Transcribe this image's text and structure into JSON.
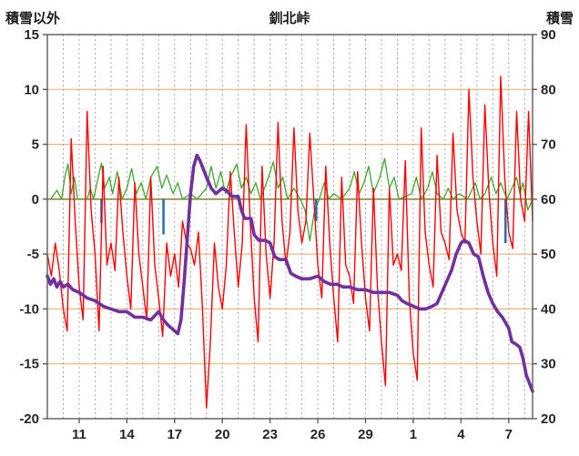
{
  "header": {
    "left_label": "積雪以外",
    "title": "釧北峠",
    "right_label": "積雪"
  },
  "style": {
    "grid_h_color": "#F2A25C",
    "zero_line_color": "#8A8A3A",
    "grid_v_color": "#A8A8A8",
    "frame_color": "#5A5A5A",
    "tick_label_color": "#262626"
  },
  "chart_data": {
    "type": "line",
    "title": "釧北峠",
    "left_axis": {
      "label": "積雪以外",
      "min": -20,
      "max": 15,
      "ticks": [
        15,
        10,
        5,
        0,
        -5,
        -10,
        -15,
        -20
      ]
    },
    "right_axis": {
      "label": "積雪",
      "min": 20,
      "max": 90,
      "ticks": [
        90,
        80,
        70,
        60,
        50,
        40,
        30,
        20
      ]
    },
    "x_axis": {
      "min": 9,
      "max": 39.5,
      "tick_positions": [
        11,
        14,
        17,
        20,
        23,
        26,
        29,
        32,
        35,
        38
      ],
      "tick_labels": [
        "11",
        "14",
        "17",
        "20",
        "23",
        "26",
        "29",
        "1",
        "4",
        "7"
      ],
      "day_grid_start": 10,
      "day_grid_end": 39
    },
    "series": [
      {
        "name": "green-line",
        "axis": "left",
        "style": "line",
        "color": "#3FA62C",
        "width": 1.3,
        "points": [
          [
            9.2,
            0
          ],
          [
            9.6,
            0.8
          ],
          [
            9.9,
            0
          ],
          [
            10.1,
            2
          ],
          [
            10.3,
            3.2
          ],
          [
            10.5,
            0.5
          ],
          [
            10.7,
            2
          ],
          [
            10.9,
            0
          ],
          [
            11.5,
            0
          ],
          [
            11.7,
            1
          ],
          [
            11.9,
            0
          ],
          [
            12.2,
            2
          ],
          [
            12.4,
            3.3
          ],
          [
            12.6,
            1
          ],
          [
            12.9,
            2
          ],
          [
            13.1,
            0.5
          ],
          [
            13.4,
            2.5
          ],
          [
            13.7,
            0
          ],
          [
            14,
            1
          ],
          [
            14.3,
            2.8
          ],
          [
            14.6,
            0.5
          ],
          [
            14.9,
            1.5
          ],
          [
            15.2,
            0
          ],
          [
            15.5,
            2
          ],
          [
            15.9,
            3
          ],
          [
            16.2,
            1
          ],
          [
            16.5,
            2.2
          ],
          [
            16.9,
            0.5
          ],
          [
            17.2,
            1.5
          ],
          [
            17.5,
            0
          ],
          [
            18,
            0.5
          ],
          [
            18.4,
            0
          ],
          [
            19,
            1
          ],
          [
            19.3,
            3
          ],
          [
            19.6,
            1
          ],
          [
            19.9,
            2.5
          ],
          [
            20.2,
            0.5
          ],
          [
            20.5,
            2
          ],
          [
            20.9,
            3.2
          ],
          [
            21.2,
            1
          ],
          [
            21.5,
            2
          ],
          [
            21.8,
            0.5
          ],
          [
            22.1,
            1.5
          ],
          [
            22.4,
            0
          ],
          [
            22.9,
            2
          ],
          [
            23.2,
            3.4
          ],
          [
            23.5,
            1
          ],
          [
            23.8,
            2
          ],
          [
            24.1,
            0
          ],
          [
            24.5,
            1
          ],
          [
            24.9,
            0
          ],
          [
            25.2,
            -1
          ],
          [
            25.5,
            -3.8
          ],
          [
            25.8,
            -1
          ],
          [
            26.1,
            0
          ],
          [
            26.4,
            1.5
          ],
          [
            26.7,
            0
          ],
          [
            27,
            0.5
          ],
          [
            27.5,
            0
          ],
          [
            28,
            1
          ],
          [
            28.3,
            2.5
          ],
          [
            28.6,
            0.5
          ],
          [
            28.9,
            1.5
          ],
          [
            29.2,
            3
          ],
          [
            29.5,
            0.5
          ],
          [
            29.9,
            2
          ],
          [
            30.2,
            3.7
          ],
          [
            30.5,
            1
          ],
          [
            30.8,
            2
          ],
          [
            31.1,
            0
          ],
          [
            31.9,
            0.5
          ],
          [
            32.2,
            2
          ],
          [
            32.5,
            0
          ],
          [
            32.9,
            1
          ],
          [
            33.2,
            2.5
          ],
          [
            33.5,
            0.5
          ],
          [
            33.9,
            0
          ],
          [
            34.2,
            1
          ],
          [
            34.5,
            0
          ],
          [
            34.9,
            0.5
          ],
          [
            35.4,
            0
          ],
          [
            35.9,
            1.5
          ],
          [
            36.2,
            0
          ],
          [
            36.5,
            0.5
          ],
          [
            36.9,
            2
          ],
          [
            37.2,
            0.5
          ],
          [
            37.5,
            1.5
          ],
          [
            37.9,
            0
          ],
          [
            38.2,
            1
          ],
          [
            38.5,
            2
          ],
          [
            38.7,
            0.5
          ],
          [
            38.9,
            1.5
          ],
          [
            39.2,
            -1
          ],
          [
            39.5,
            0
          ]
        ]
      },
      {
        "name": "blue-bars",
        "axis": "left",
        "style": "bars",
        "color": "#1F6EC0",
        "width": 2.5,
        "points": [
          [
            12.4,
            -2.2
          ],
          [
            16.3,
            -3.2
          ],
          [
            25.9,
            -2.0
          ],
          [
            37.8,
            -4.0
          ]
        ]
      },
      {
        "name": "red-line",
        "axis": "left",
        "style": "line",
        "color": "#FF0000",
        "width": 1.4,
        "x_start": 9,
        "x_step": 0.25,
        "values": [
          -5,
          -7,
          -4,
          -6.5,
          -10,
          -12,
          5.5,
          -2,
          -8,
          -11,
          8,
          -1,
          -5,
          -12,
          3,
          -6,
          -4,
          -6.5,
          2,
          -3,
          -7,
          -10,
          1.5,
          -5,
          -8,
          -11,
          2,
          -6,
          -9,
          -12.5,
          -4,
          -7,
          -5,
          -8,
          -2,
          -4,
          -4.5,
          -6,
          -3,
          -10,
          -19,
          -13,
          -4,
          -8,
          -10,
          -6,
          2.5,
          -3,
          -8,
          -4,
          6.8,
          -2,
          -9,
          -13,
          3,
          -5,
          -9,
          -4,
          7,
          -2,
          -6,
          -3,
          6.5,
          -1,
          -4,
          -2,
          6,
          0,
          -6,
          -9,
          3,
          -4,
          -9,
          -13,
          2,
          -6,
          -7,
          -9.5,
          2.5,
          -4,
          -9,
          -12,
          1,
          -8,
          -13,
          -17,
          1,
          -6,
          -5,
          -6.5,
          3.5,
          -9,
          -14,
          -16.5,
          6.5,
          -3,
          -6,
          -8,
          4,
          -3,
          -4,
          -5.5,
          6,
          -1,
          -3,
          -4,
          10,
          2,
          -2,
          -5,
          8.6,
          1,
          -4,
          -7,
          11.2,
          2,
          -3,
          -4.5,
          8,
          0,
          -2,
          8,
          -2
        ]
      },
      {
        "name": "purple-line",
        "axis": "right",
        "style": "line",
        "color": "#7030A0",
        "width": 3.6,
        "points": [
          [
            9,
            46
          ],
          [
            9.2,
            44.5
          ],
          [
            9.4,
            45.5
          ],
          [
            9.6,
            44
          ],
          [
            9.8,
            45
          ],
          [
            10,
            44
          ],
          [
            10.3,
            44.5
          ],
          [
            10.6,
            43.5
          ],
          [
            11,
            43
          ],
          [
            11.5,
            42
          ],
          [
            12,
            41.5
          ],
          [
            12.5,
            40.5
          ],
          [
            13,
            40
          ],
          [
            13.5,
            39.5
          ],
          [
            14,
            39.5
          ],
          [
            14.5,
            38.5
          ],
          [
            15,
            38.5
          ],
          [
            15.5,
            38
          ],
          [
            16,
            39.5
          ],
          [
            16.3,
            38
          ],
          [
            16.6,
            37
          ],
          [
            17,
            36
          ],
          [
            17.2,
            35.5
          ],
          [
            17.4,
            38
          ],
          [
            17.6,
            45
          ],
          [
            17.8,
            53
          ],
          [
            18,
            61
          ],
          [
            18.2,
            66
          ],
          [
            18.4,
            68
          ],
          [
            18.6,
            67
          ],
          [
            18.8,
            65.5
          ],
          [
            19,
            64
          ],
          [
            19.3,
            62
          ],
          [
            19.6,
            61
          ],
          [
            20,
            62
          ],
          [
            20.3,
            61.5
          ],
          [
            20.6,
            60.5
          ],
          [
            21,
            60.5
          ],
          [
            21.2,
            58
          ],
          [
            21.4,
            56.5
          ],
          [
            21.8,
            56.5
          ],
          [
            22,
            53.5
          ],
          [
            22.3,
            52.5
          ],
          [
            22.7,
            52.5
          ],
          [
            23,
            52
          ],
          [
            23.3,
            49.5
          ],
          [
            23.6,
            49
          ],
          [
            24,
            49
          ],
          [
            24.3,
            46.5
          ],
          [
            24.6,
            46
          ],
          [
            25,
            45.5
          ],
          [
            25.5,
            45.5
          ],
          [
            26,
            46
          ],
          [
            26.4,
            45
          ],
          [
            26.8,
            44.5
          ],
          [
            27.2,
            44.5
          ],
          [
            27.6,
            44
          ],
          [
            28,
            44
          ],
          [
            28.5,
            43.5
          ],
          [
            29,
            43.5
          ],
          [
            29.5,
            43
          ],
          [
            30,
            43
          ],
          [
            30.5,
            43
          ],
          [
            31,
            42.5
          ],
          [
            31.3,
            41.5
          ],
          [
            31.6,
            41
          ],
          [
            32,
            40.5
          ],
          [
            32.4,
            40
          ],
          [
            32.8,
            40
          ],
          [
            33.2,
            40.5
          ],
          [
            33.5,
            41
          ],
          [
            33.8,
            43
          ],
          [
            34.1,
            45
          ],
          [
            34.4,
            47
          ],
          [
            34.7,
            50
          ],
          [
            35,
            52
          ],
          [
            35.2,
            52.5
          ],
          [
            35.5,
            52
          ],
          [
            35.8,
            50
          ],
          [
            36.1,
            49.5
          ],
          [
            36.4,
            46
          ],
          [
            36.7,
            43
          ],
          [
            37,
            41
          ],
          [
            37.3,
            39.5
          ],
          [
            37.6,
            38.5
          ],
          [
            38,
            36.5
          ],
          [
            38.2,
            34
          ],
          [
            38.5,
            33.5
          ],
          [
            38.7,
            33
          ],
          [
            38.9,
            31
          ],
          [
            39.1,
            28
          ],
          [
            39.3,
            26.5
          ],
          [
            39.5,
            25
          ]
        ]
      }
    ]
  }
}
